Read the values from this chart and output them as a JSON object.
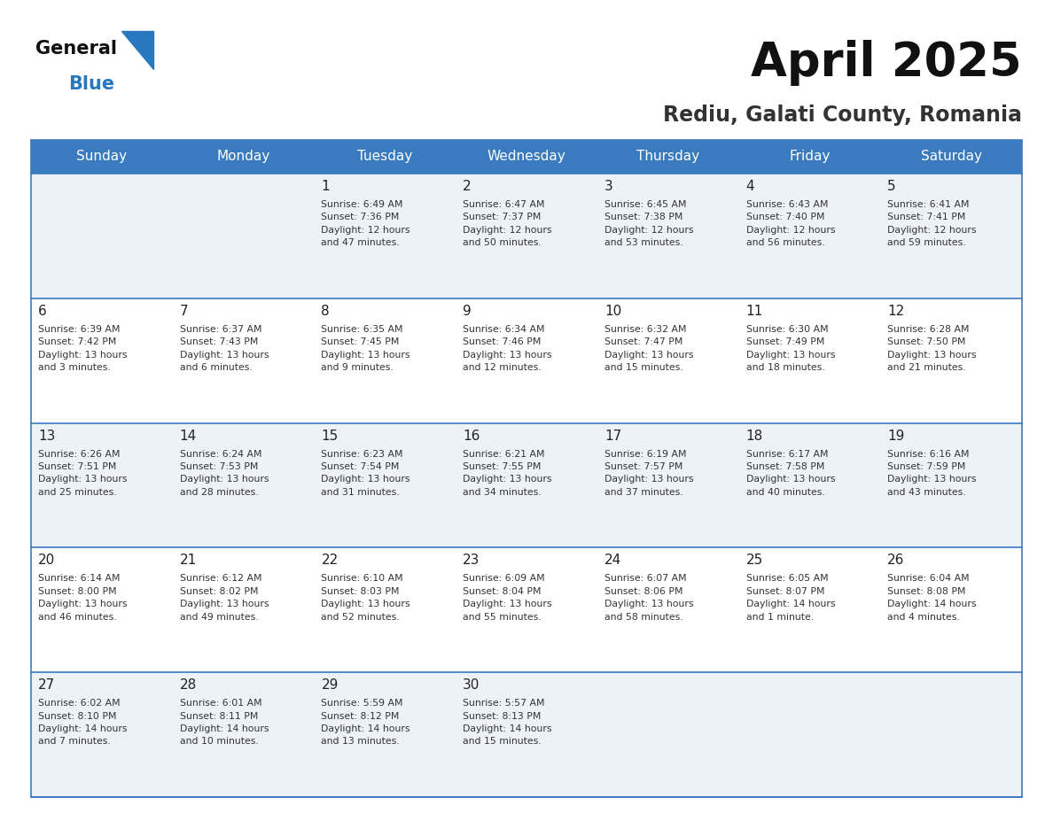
{
  "title": "April 2025",
  "subtitle": "Rediu, Galati County, Romania",
  "header_bg": "#3a7bbf",
  "header_text_color": "#ffffff",
  "weekdays": [
    "Sunday",
    "Monday",
    "Tuesday",
    "Wednesday",
    "Thursday",
    "Friday",
    "Saturday"
  ],
  "row_bg_odd": "#edf2f8",
  "row_bg_even": "#ffffff",
  "cell_border_color": "#3a7bbf",
  "day_number_color": "#222222",
  "day_text_color": "#333333",
  "logo_general_color": "#111111",
  "logo_blue_color": "#2878bf",
  "logo_triangle_color": "#2878bf",
  "title_color": "#111111",
  "subtitle_color": "#333333",
  "calendar": [
    [
      {
        "day": "",
        "info": ""
      },
      {
        "day": "",
        "info": ""
      },
      {
        "day": "1",
        "info": "Sunrise: 6:49 AM\nSunset: 7:36 PM\nDaylight: 12 hours\nand 47 minutes."
      },
      {
        "day": "2",
        "info": "Sunrise: 6:47 AM\nSunset: 7:37 PM\nDaylight: 12 hours\nand 50 minutes."
      },
      {
        "day": "3",
        "info": "Sunrise: 6:45 AM\nSunset: 7:38 PM\nDaylight: 12 hours\nand 53 minutes."
      },
      {
        "day": "4",
        "info": "Sunrise: 6:43 AM\nSunset: 7:40 PM\nDaylight: 12 hours\nand 56 minutes."
      },
      {
        "day": "5",
        "info": "Sunrise: 6:41 AM\nSunset: 7:41 PM\nDaylight: 12 hours\nand 59 minutes."
      }
    ],
    [
      {
        "day": "6",
        "info": "Sunrise: 6:39 AM\nSunset: 7:42 PM\nDaylight: 13 hours\nand 3 minutes."
      },
      {
        "day": "7",
        "info": "Sunrise: 6:37 AM\nSunset: 7:43 PM\nDaylight: 13 hours\nand 6 minutes."
      },
      {
        "day": "8",
        "info": "Sunrise: 6:35 AM\nSunset: 7:45 PM\nDaylight: 13 hours\nand 9 minutes."
      },
      {
        "day": "9",
        "info": "Sunrise: 6:34 AM\nSunset: 7:46 PM\nDaylight: 13 hours\nand 12 minutes."
      },
      {
        "day": "10",
        "info": "Sunrise: 6:32 AM\nSunset: 7:47 PM\nDaylight: 13 hours\nand 15 minutes."
      },
      {
        "day": "11",
        "info": "Sunrise: 6:30 AM\nSunset: 7:49 PM\nDaylight: 13 hours\nand 18 minutes."
      },
      {
        "day": "12",
        "info": "Sunrise: 6:28 AM\nSunset: 7:50 PM\nDaylight: 13 hours\nand 21 minutes."
      }
    ],
    [
      {
        "day": "13",
        "info": "Sunrise: 6:26 AM\nSunset: 7:51 PM\nDaylight: 13 hours\nand 25 minutes."
      },
      {
        "day": "14",
        "info": "Sunrise: 6:24 AM\nSunset: 7:53 PM\nDaylight: 13 hours\nand 28 minutes."
      },
      {
        "day": "15",
        "info": "Sunrise: 6:23 AM\nSunset: 7:54 PM\nDaylight: 13 hours\nand 31 minutes."
      },
      {
        "day": "16",
        "info": "Sunrise: 6:21 AM\nSunset: 7:55 PM\nDaylight: 13 hours\nand 34 minutes."
      },
      {
        "day": "17",
        "info": "Sunrise: 6:19 AM\nSunset: 7:57 PM\nDaylight: 13 hours\nand 37 minutes."
      },
      {
        "day": "18",
        "info": "Sunrise: 6:17 AM\nSunset: 7:58 PM\nDaylight: 13 hours\nand 40 minutes."
      },
      {
        "day": "19",
        "info": "Sunrise: 6:16 AM\nSunset: 7:59 PM\nDaylight: 13 hours\nand 43 minutes."
      }
    ],
    [
      {
        "day": "20",
        "info": "Sunrise: 6:14 AM\nSunset: 8:00 PM\nDaylight: 13 hours\nand 46 minutes."
      },
      {
        "day": "21",
        "info": "Sunrise: 6:12 AM\nSunset: 8:02 PM\nDaylight: 13 hours\nand 49 minutes."
      },
      {
        "day": "22",
        "info": "Sunrise: 6:10 AM\nSunset: 8:03 PM\nDaylight: 13 hours\nand 52 minutes."
      },
      {
        "day": "23",
        "info": "Sunrise: 6:09 AM\nSunset: 8:04 PM\nDaylight: 13 hours\nand 55 minutes."
      },
      {
        "day": "24",
        "info": "Sunrise: 6:07 AM\nSunset: 8:06 PM\nDaylight: 13 hours\nand 58 minutes."
      },
      {
        "day": "25",
        "info": "Sunrise: 6:05 AM\nSunset: 8:07 PM\nDaylight: 14 hours\nand 1 minute."
      },
      {
        "day": "26",
        "info": "Sunrise: 6:04 AM\nSunset: 8:08 PM\nDaylight: 14 hours\nand 4 minutes."
      }
    ],
    [
      {
        "day": "27",
        "info": "Sunrise: 6:02 AM\nSunset: 8:10 PM\nDaylight: 14 hours\nand 7 minutes."
      },
      {
        "day": "28",
        "info": "Sunrise: 6:01 AM\nSunset: 8:11 PM\nDaylight: 14 hours\nand 10 minutes."
      },
      {
        "day": "29",
        "info": "Sunrise: 5:59 AM\nSunset: 8:12 PM\nDaylight: 14 hours\nand 13 minutes."
      },
      {
        "day": "30",
        "info": "Sunrise: 5:57 AM\nSunset: 8:13 PM\nDaylight: 14 hours\nand 15 minutes."
      },
      {
        "day": "",
        "info": ""
      },
      {
        "day": "",
        "info": ""
      },
      {
        "day": "",
        "info": ""
      }
    ]
  ]
}
